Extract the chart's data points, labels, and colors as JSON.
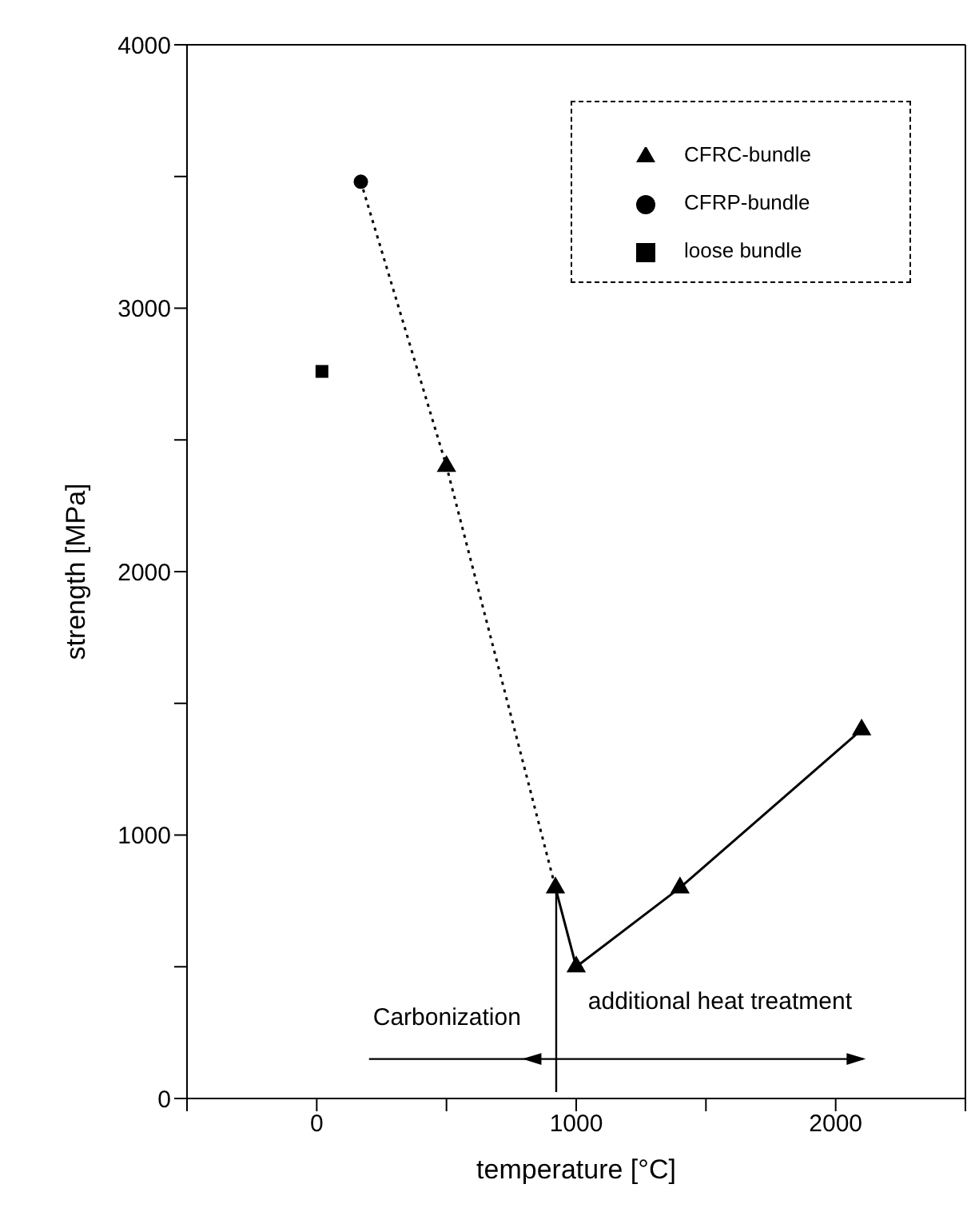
{
  "chart_data": {
    "type": "line",
    "xlabel": "temperature [°C]",
    "ylabel": "strength [MPa]",
    "xlim": [
      -500,
      2500
    ],
    "xticks": [
      {
        "value": -500,
        "label": null
      },
      0,
      {
        "value": 500,
        "label": null
      },
      1000,
      {
        "value": 1500,
        "label": null
      },
      2000,
      {
        "value": 2500,
        "label": null
      }
    ],
    "ylim": [
      0,
      4000
    ],
    "yticks": [
      0,
      {
        "value": 500,
        "label": null
      },
      1000,
      {
        "value": 1500,
        "label": null
      },
      2000,
      {
        "value": 2500,
        "label": null
      },
      3000,
      {
        "value": 3500,
        "label": null
      },
      4000
    ],
    "grid": false,
    "legend": "top right",
    "series": [
      {
        "name": "CFRC-bundle",
        "type": "scatter",
        "marker": "triangle",
        "color": "#000000",
        "x": [
          500,
          920,
          1000,
          1400,
          2100
        ],
        "values": [
          2400,
          800,
          500,
          800,
          1400
        ]
      },
      {
        "name": "loose bundle",
        "type": "scatter",
        "marker": "square",
        "color": "#000000",
        "x": [
          20
        ],
        "values": [
          2760
        ]
      },
      {
        "name": "CFRP-bundle",
        "type": "scatter",
        "marker": "circle",
        "color": "#000000",
        "x": [
          170
        ],
        "values": [
          3480
        ]
      },
      {
        "type": "line",
        "marker": "none",
        "line_style": "dotted",
        "color": "#000000",
        "x": [
          170,
          500,
          920
        ],
        "values": [
          3480,
          2400,
          800
        ]
      },
      {
        "type": "line",
        "marker": "none",
        "line_style": "solid",
        "color": "#000000",
        "x": [
          920,
          1000,
          1400,
          2100
        ],
        "values": [
          800,
          500,
          800,
          1400
        ]
      }
    ],
    "annotations": [
      "Carbonization",
      "additional heat treatment"
    ]
  }
}
